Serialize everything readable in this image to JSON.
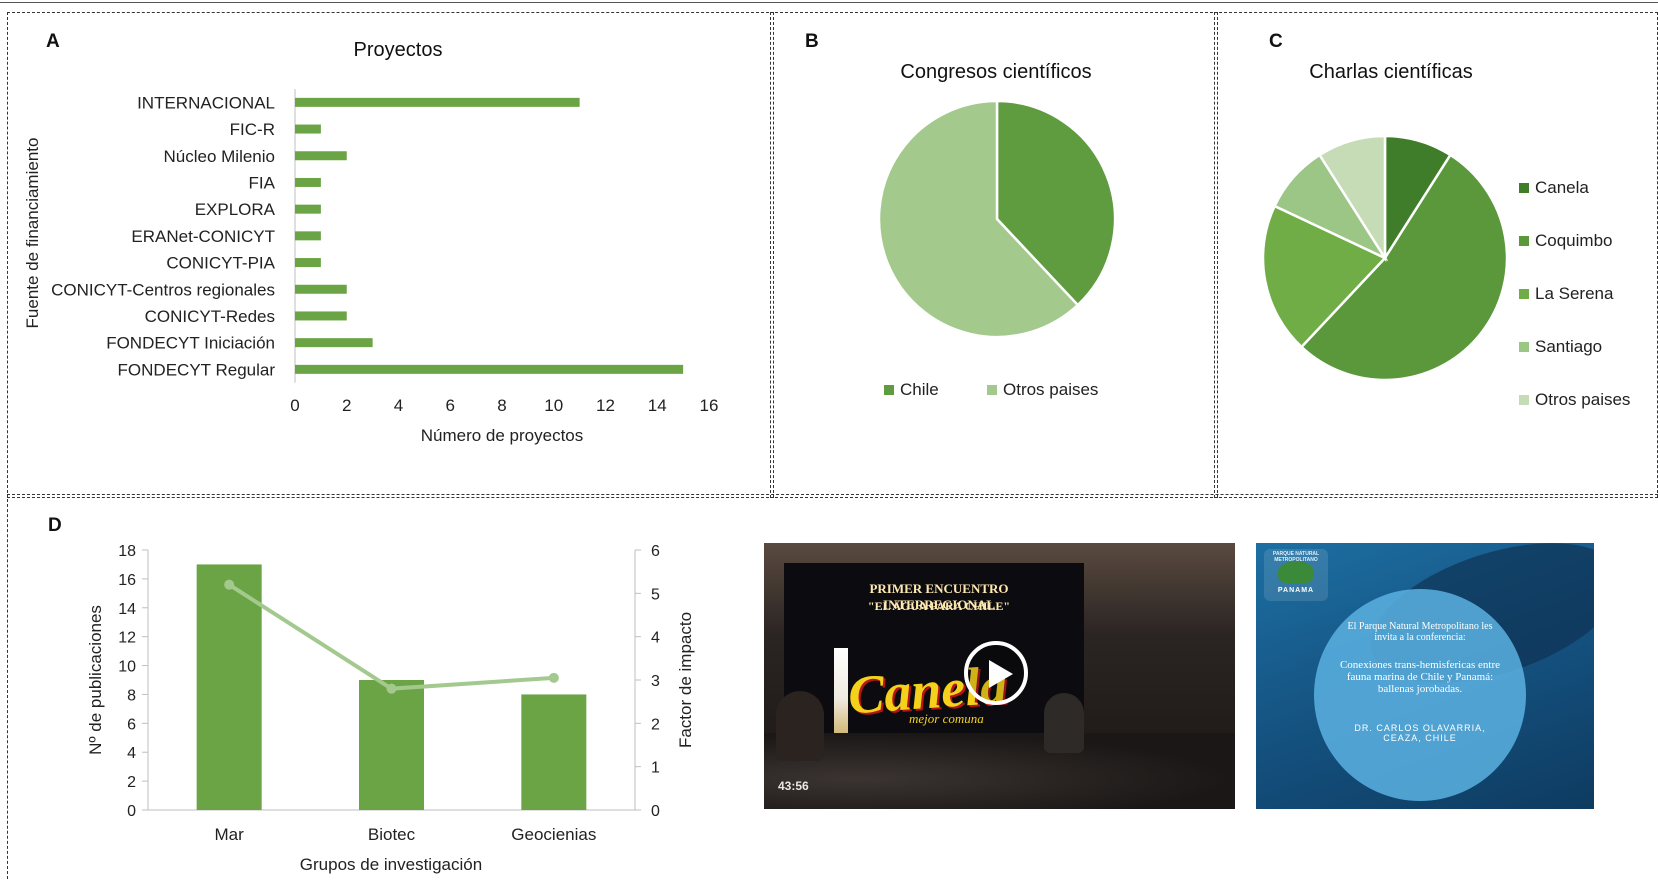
{
  "panels": {
    "a": "A",
    "b": "B",
    "c": "C",
    "d": "D"
  },
  "colors": {
    "bar": "#6aa444",
    "line": "#a4c98f",
    "chile": "#5f9b3f",
    "otros": "#a3c98d",
    "canela": "#3f7d2b",
    "coquimbo": "#5a983b",
    "laserena": "#70ad47",
    "santiago": "#9cc686",
    "otros_c": "#c5dcb7"
  },
  "chart_data": [
    {
      "type": "bar",
      "orientation": "horizontal",
      "title": "Proyectos",
      "xlabel": "Número de proyectos",
      "ylabel": "Fuente de financiamiento",
      "categories": [
        "INTERNACIONAL",
        "FIC-R",
        "Núcleo Milenio",
        "FIA",
        "EXPLORA",
        "ERANet-CONICYT",
        "CONICYT-PIA",
        "CONICYT-Centros regionales",
        "CONICYT-Redes",
        "FONDECYT Iniciación",
        "FONDECYT Regular"
      ],
      "values": [
        11,
        1,
        2,
        1,
        1,
        1,
        1,
        2,
        2,
        3,
        15
      ],
      "xlim": [
        0,
        16
      ],
      "xticks": [
        "0",
        "2",
        "4",
        "6",
        "8",
        "10",
        "12",
        "14",
        "16"
      ]
    },
    {
      "type": "pie",
      "title": "Congresos científicos",
      "labels": [
        "Chile",
        "Otros paises"
      ],
      "values": [
        38,
        62
      ],
      "legend": "bottom"
    },
    {
      "type": "pie",
      "title": "Charlas científicas",
      "labels": [
        "Canela",
        "Coquimbo",
        "La Serena",
        "Santiago",
        "Otros paises"
      ],
      "values": [
        9,
        53,
        20,
        9,
        9
      ],
      "legend": "right"
    },
    {
      "type": "bar",
      "title": "",
      "categories": [
        "Mar",
        "Biotec",
        "Geocienias"
      ],
      "xlabel": "Grupos de investigación",
      "ylabel": "Nº de publicaciones",
      "y2label": "Factor de impacto",
      "ylim": [
        0,
        18
      ],
      "y2lim": [
        0,
        6
      ],
      "yticks": [
        "0",
        "2",
        "4",
        "6",
        "8",
        "10",
        "12",
        "14",
        "16",
        "18"
      ],
      "y2ticks": [
        "0",
        "1",
        "2",
        "3",
        "4",
        "5",
        "6"
      ],
      "series": [
        {
          "values": [
            17,
            9,
            8
          ],
          "axis": "left",
          "kind": "bar"
        },
        {
          "values": [
            5.2,
            2.8,
            3.05
          ],
          "axis": "right",
          "kind": "line"
        }
      ]
    }
  ],
  "video": {
    "banner_line1": "PRIMER ENCUENTRO INTERREGIONAL",
    "banner_line2": "\"EL AGUA PARA CHILE\"",
    "logo_text": "Canela",
    "logo_sub": "mejor comuna",
    "duration": "43:56",
    "play_icon": "play-icon"
  },
  "poster": {
    "logo_top": "PARQUE NATURAL METROPOLITANO",
    "logo_name": "PANAMA",
    "invite": "El Parque Natural Metropolitano les invita a la conferencia:",
    "talk": "Conexiones trans-hemisfericas entre fauna marina de Chile y Panamá: ballenas jorobadas.",
    "speaker": "DR. CARLOS OLAVARRIA, CEAZA, CHILE"
  }
}
